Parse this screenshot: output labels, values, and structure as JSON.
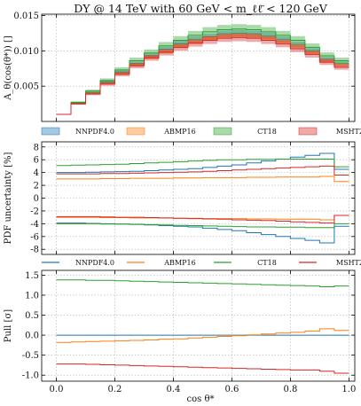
{
  "title": "DY @ 14 TeV with 60 GeV < m_ℓℓ̄ < 120 GeV",
  "xlabel": "cos θ*",
  "colors": {
    "NNPDF4.0": "#1f77b4",
    "ABMP16": "#ff7f0e",
    "CT18": "#2ca02c",
    "MSHT20": "#d62728"
  },
  "legend": [
    "NNPDF4.0",
    "ABMP16",
    "CT18",
    "MSHT20"
  ],
  "chart_data": [
    {
      "type": "area",
      "panel": "top",
      "ylabel": "A_θ(cos(θ*)) []",
      "xlim": [
        -0.05,
        1.02
      ],
      "ylim": [
        0,
        0.0152
      ],
      "yticks": [
        0.005,
        0.01,
        0.015
      ],
      "grid": true,
      "legend_position": "below panel, 4 columns",
      "bin_edges": [
        0,
        0.05,
        0.1,
        0.15,
        0.2,
        0.25,
        0.3,
        0.35,
        0.4,
        0.45,
        0.5,
        0.55,
        0.6,
        0.65,
        0.7,
        0.75,
        0.8,
        0.85,
        0.9,
        0.95,
        1.0
      ],
      "series": [
        {
          "name": "NNPDF4.0",
          "values": [
            0.001,
            0.0026,
            0.0041,
            0.0056,
            0.007,
            0.0082,
            0.0093,
            0.0102,
            0.011,
            0.0116,
            0.012,
            0.0124,
            0.0125,
            0.0124,
            0.0121,
            0.0116,
            0.0109,
            0.01,
            0.0088,
            0.0082
          ],
          "band": [
            5e-05,
            0.0001,
            0.00015,
            0.0002,
            0.00025,
            0.0003,
            0.00035,
            0.0004,
            0.00043,
            0.00045,
            0.00047,
            0.00048,
            0.00048,
            0.00048,
            0.00047,
            0.00045,
            0.00043,
            0.0004,
            0.00035,
            0.0003
          ]
        },
        {
          "name": "ABMP16",
          "values": [
            0.001,
            0.0025,
            0.004,
            0.0054,
            0.0068,
            0.008,
            0.0091,
            0.0099,
            0.0107,
            0.0113,
            0.0118,
            0.0121,
            0.0122,
            0.0121,
            0.0118,
            0.0113,
            0.0107,
            0.0098,
            0.0086,
            0.008
          ],
          "band": [
            3e-05,
            8e-05,
            0.00012,
            0.00016,
            0.0002,
            0.00024,
            0.00028,
            0.0003,
            0.00032,
            0.00034,
            0.00035,
            0.00036,
            0.00036,
            0.00036,
            0.00035,
            0.00034,
            0.00032,
            0.0003,
            0.00027,
            0.00024
          ]
        },
        {
          "name": "CT18",
          "values": [
            0.001,
            0.0027,
            0.0043,
            0.0058,
            0.0073,
            0.0086,
            0.0097,
            0.0107,
            0.0115,
            0.0122,
            0.0127,
            0.013,
            0.0131,
            0.013,
            0.0127,
            0.0122,
            0.0115,
            0.0105,
            0.0093,
            0.0086
          ],
          "band": [
            6e-05,
            0.00015,
            0.00022,
            0.0003,
            0.00037,
            0.00044,
            0.0005,
            0.00055,
            0.0006,
            0.00063,
            0.00066,
            0.00068,
            0.00068,
            0.00068,
            0.00066,
            0.00063,
            0.0006,
            0.00055,
            0.00048,
            0.00044
          ]
        },
        {
          "name": "MSHT20",
          "values": [
            0.001,
            0.0025,
            0.0039,
            0.0053,
            0.0067,
            0.0079,
            0.009,
            0.0098,
            0.0105,
            0.0111,
            0.0115,
            0.0118,
            0.0119,
            0.0118,
            0.0115,
            0.011,
            0.0103,
            0.0095,
            0.0084,
            0.0077
          ],
          "band": [
            5e-05,
            0.00012,
            0.00018,
            0.00025,
            0.0003,
            0.00036,
            0.0004,
            0.00045,
            0.00048,
            0.0005,
            0.00052,
            0.00053,
            0.00053,
            0.00053,
            0.00052,
            0.0005,
            0.00048,
            0.00045,
            0.0004,
            0.00036
          ]
        }
      ]
    },
    {
      "type": "line",
      "panel": "middle",
      "ylabel": "PDF uncertainty [%]",
      "xlim": [
        -0.05,
        1.02
      ],
      "ylim": [
        -8.8,
        8.8
      ],
      "yticks": [
        -8,
        -6,
        -4,
        -2,
        0,
        2,
        4,
        6,
        8
      ],
      "grid": true,
      "legend_position": "below panel, 4 columns",
      "bin_edges": [
        0,
        0.05,
        0.1,
        0.15,
        0.2,
        0.25,
        0.3,
        0.35,
        0.4,
        0.45,
        0.5,
        0.55,
        0.6,
        0.65,
        0.7,
        0.75,
        0.8,
        0.85,
        0.9,
        0.95,
        1.0
      ],
      "series": [
        {
          "name": "NNPDF4.0",
          "upper": [
            4.0,
            4.0,
            4.05,
            4.1,
            4.15,
            4.2,
            4.3,
            4.4,
            4.5,
            4.6,
            4.8,
            5.0,
            5.2,
            5.5,
            5.8,
            6.1,
            6.4,
            6.7,
            7.0,
            4.5
          ],
          "lower": [
            -3.9,
            -3.9,
            -3.95,
            -4.0,
            -4.05,
            -4.1,
            -4.2,
            -4.3,
            -4.4,
            -4.5,
            -4.7,
            -4.9,
            -5.1,
            -5.4,
            -5.7,
            -6.0,
            -6.3,
            -6.6,
            -7.0,
            -4.4
          ]
        },
        {
          "name": "ABMP16",
          "upper": [
            3.0,
            3.0,
            3.0,
            3.05,
            3.05,
            3.1,
            3.1,
            3.1,
            3.15,
            3.15,
            3.2,
            3.2,
            3.2,
            3.25,
            3.25,
            3.3,
            3.3,
            3.3,
            3.4,
            2.6
          ],
          "lower": [
            -3.0,
            -3.0,
            -3.0,
            -3.05,
            -3.05,
            -3.1,
            -3.1,
            -3.1,
            -3.15,
            -3.15,
            -3.2,
            -3.2,
            -3.2,
            -3.25,
            -3.25,
            -3.3,
            -3.3,
            -3.3,
            -3.4,
            -2.7
          ]
        },
        {
          "name": "CT18",
          "upper": [
            5.1,
            5.15,
            5.2,
            5.25,
            5.3,
            5.4,
            5.5,
            5.6,
            5.7,
            5.8,
            5.9,
            6.0,
            6.0,
            6.05,
            6.05,
            6.1,
            6.1,
            6.1,
            6.1,
            4.9
          ],
          "lower": [
            -4.0,
            -4.0,
            -4.0,
            -4.05,
            -4.05,
            -4.1,
            -4.15,
            -4.2,
            -4.25,
            -4.3,
            -4.35,
            -4.4,
            -4.45,
            -4.5,
            -4.5,
            -4.55,
            -4.55,
            -4.6,
            -4.6,
            -4.0
          ]
        },
        {
          "name": "MSHT20",
          "upper": [
            3.8,
            3.8,
            3.8,
            3.85,
            3.85,
            3.9,
            3.95,
            4.0,
            4.05,
            4.1,
            4.2,
            4.3,
            4.4,
            4.5,
            4.6,
            4.7,
            4.8,
            4.9,
            5.0,
            3.6
          ],
          "lower": [
            -2.9,
            -2.9,
            -2.9,
            -2.95,
            -3.0,
            -3.0,
            -3.05,
            -3.1,
            -3.15,
            -3.2,
            -3.25,
            -3.3,
            -3.4,
            -3.45,
            -3.5,
            -3.6,
            -3.7,
            -3.8,
            -3.9,
            -2.7
          ]
        }
      ]
    },
    {
      "type": "line",
      "panel": "bottom",
      "ylabel": "Pull [σ]",
      "xlim": [
        -0.05,
        1.02
      ],
      "ylim": [
        -1.15,
        1.62
      ],
      "xticks": [
        0.0,
        0.2,
        0.4,
        0.6,
        0.8,
        1.0
      ],
      "yticks": [
        -1.0,
        -0.5,
        0.0,
        0.5,
        1.0,
        1.5
      ],
      "grid": true,
      "bin_edges": [
        0,
        0.05,
        0.1,
        0.15,
        0.2,
        0.25,
        0.3,
        0.35,
        0.4,
        0.45,
        0.5,
        0.55,
        0.6,
        0.65,
        0.7,
        0.75,
        0.8,
        0.85,
        0.9,
        0.95,
        1.0
      ],
      "series": [
        {
          "name": "NNPDF4.0",
          "values": [
            0,
            0,
            0,
            0,
            0,
            0,
            0,
            0,
            0,
            0,
            0,
            0,
            0,
            0,
            0,
            0,
            0,
            0,
            0,
            0
          ]
        },
        {
          "name": "ABMP16",
          "values": [
            -0.18,
            -0.17,
            -0.16,
            -0.15,
            -0.14,
            -0.13,
            -0.12,
            -0.1,
            -0.09,
            -0.07,
            -0.05,
            -0.03,
            -0.01,
            0.01,
            0.03,
            0.05,
            0.07,
            0.1,
            0.16,
            0.12
          ]
        },
        {
          "name": "CT18",
          "values": [
            1.38,
            1.38,
            1.37,
            1.37,
            1.36,
            1.35,
            1.34,
            1.33,
            1.32,
            1.31,
            1.3,
            1.29,
            1.28,
            1.27,
            1.26,
            1.25,
            1.24,
            1.23,
            1.21,
            1.23
          ]
        },
        {
          "name": "MSHT20",
          "values": [
            -0.72,
            -0.72,
            -0.73,
            -0.74,
            -0.75,
            -0.76,
            -0.77,
            -0.78,
            -0.79,
            -0.8,
            -0.81,
            -0.82,
            -0.83,
            -0.84,
            -0.85,
            -0.86,
            -0.87,
            -0.87,
            -0.9,
            -0.95
          ]
        }
      ]
    }
  ]
}
